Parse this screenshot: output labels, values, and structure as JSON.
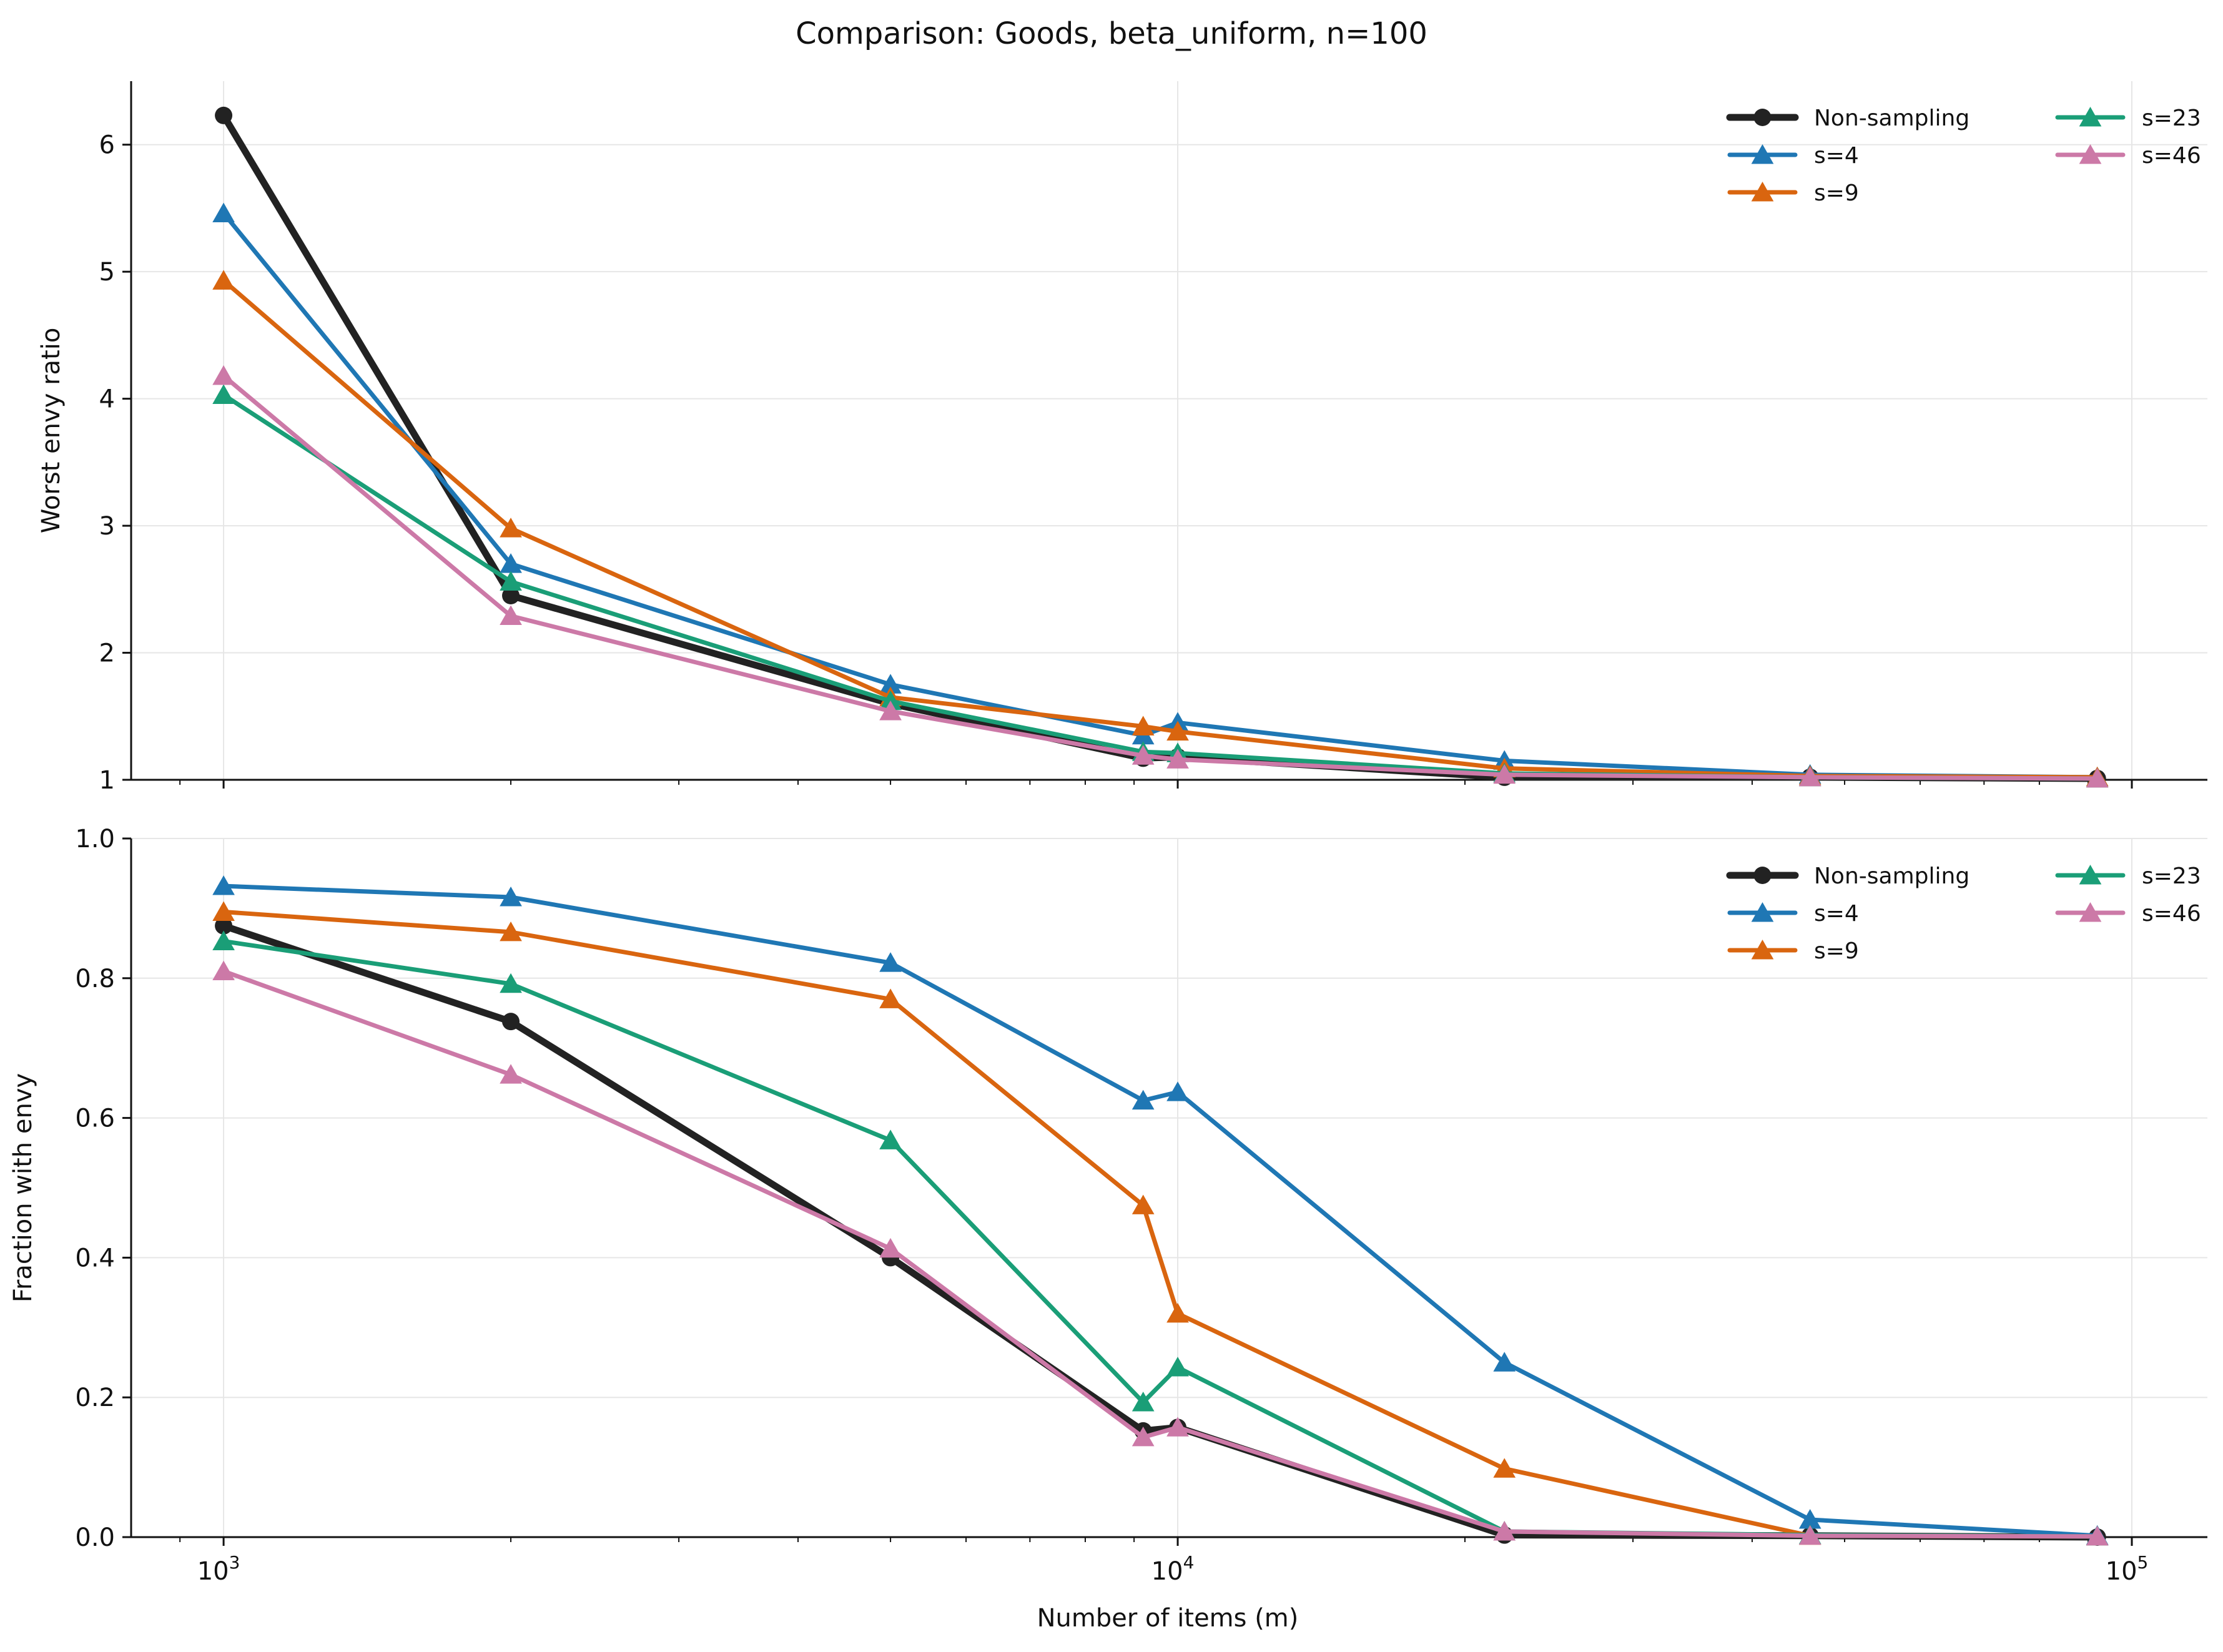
{
  "figure": {
    "title": "Comparison: Goods, beta_uniform, n=100",
    "shared_xlabel": "Number of items (m)"
  },
  "legend_labels": [
    "Non-sampling",
    "s=4",
    "s=9",
    "s=23",
    "s=46"
  ],
  "colors": {
    "Non-sampling": "#222222",
    "s=4": "#1f77b4",
    "s=9": "#d9650f",
    "s=23": "#1a9e77",
    "s=46": "#cc79a7"
  },
  "chart_data": [
    {
      "type": "line",
      "title": "Comparison: Goods, beta_uniform, n=100",
      "xlabel": "Number of items (m)",
      "ylabel": "Worst envy ratio",
      "xscale": "log",
      "xlim": [
        800,
        120000
      ],
      "ylim": [
        1,
        6.5
      ],
      "yticks": [
        "1",
        "2",
        "3",
        "4",
        "5",
        "6"
      ],
      "xticks": [
        {
          "base": "10",
          "exp": "3"
        },
        {
          "base": "10",
          "exp": "4"
        },
        {
          "base": "10",
          "exp": "5"
        }
      ],
      "grid": true,
      "legend_position": "top-right",
      "series": [
        {
          "name": "Non-sampling",
          "marker": "circle",
          "x": [
            1000,
            2000,
            5000,
            9200,
            10000,
            22000,
            46000,
            92000
          ],
          "y": [
            6.23,
            2.45,
            1.6,
            1.17,
            1.18,
            1.02,
            1.02,
            1.01
          ]
        },
        {
          "name": "s=4",
          "marker": "triangle",
          "x": [
            1000,
            2000,
            5000,
            9200,
            10000,
            22000,
            46000,
            92000
          ],
          "y": [
            5.46,
            2.7,
            1.75,
            1.35,
            1.45,
            1.15,
            1.04,
            1.02
          ]
        },
        {
          "name": "s=9",
          "marker": "triangle",
          "x": [
            1000,
            2000,
            5000,
            9200,
            10000,
            22000,
            46000,
            92000
          ],
          "y": [
            4.93,
            2.98,
            1.65,
            1.42,
            1.38,
            1.09,
            1.03,
            1.02
          ]
        },
        {
          "name": "s=23",
          "marker": "triangle",
          "x": [
            1000,
            2000,
            5000,
            9200,
            10000,
            22000,
            46000,
            92000
          ],
          "y": [
            4.03,
            2.56,
            1.62,
            1.22,
            1.21,
            1.05,
            1.02,
            1.01
          ]
        },
        {
          "name": "s=46",
          "marker": "triangle",
          "x": [
            1000,
            2000,
            5000,
            9200,
            10000,
            22000,
            46000,
            92000
          ],
          "y": [
            4.18,
            2.29,
            1.54,
            1.19,
            1.16,
            1.04,
            1.02,
            1.01
          ]
        }
      ]
    },
    {
      "type": "line",
      "title": "",
      "xlabel": "Number of items (m)",
      "ylabel": "Fraction with envy",
      "xscale": "log",
      "xlim": [
        800,
        120000
      ],
      "ylim": [
        0,
        1
      ],
      "yticks": [
        "0.0",
        "0.2",
        "0.4",
        "0.6",
        "0.8",
        "1.0"
      ],
      "xticks": [
        {
          "base": "10",
          "exp": "3"
        },
        {
          "base": "10",
          "exp": "4"
        },
        {
          "base": "10",
          "exp": "5"
        }
      ],
      "grid": true,
      "legend_position": "top-right",
      "series": [
        {
          "name": "Non-sampling",
          "marker": "circle",
          "x": [
            1000,
            2000,
            5000,
            9200,
            10000,
            22000,
            46000,
            92000
          ],
          "y": [
            0.875,
            0.738,
            0.4,
            0.152,
            0.157,
            0.003,
            0.002,
            0.0
          ]
        },
        {
          "name": "s=4",
          "marker": "triangle",
          "x": [
            1000,
            2000,
            5000,
            9200,
            10000,
            22000,
            46000,
            92000
          ],
          "y": [
            0.932,
            0.916,
            0.822,
            0.625,
            0.637,
            0.25,
            0.025,
            0.002
          ]
        },
        {
          "name": "s=9",
          "marker": "triangle",
          "x": [
            1000,
            2000,
            5000,
            9200,
            10000,
            22000,
            46000,
            92000
          ],
          "y": [
            0.895,
            0.866,
            0.77,
            0.475,
            0.32,
            0.098,
            0.002,
            0.001
          ]
        },
        {
          "name": "s=23",
          "marker": "triangle",
          "x": [
            1000,
            2000,
            5000,
            9200,
            10000,
            22000,
            46000,
            92000
          ],
          "y": [
            0.853,
            0.792,
            0.568,
            0.193,
            0.243,
            0.008,
            0.003,
            0.001
          ]
        },
        {
          "name": "s=46",
          "marker": "triangle",
          "x": [
            1000,
            2000,
            5000,
            9200,
            10000,
            22000,
            46000,
            92000
          ],
          "y": [
            0.81,
            0.662,
            0.413,
            0.143,
            0.157,
            0.008,
            0.002,
            0.001
          ]
        }
      ]
    }
  ]
}
